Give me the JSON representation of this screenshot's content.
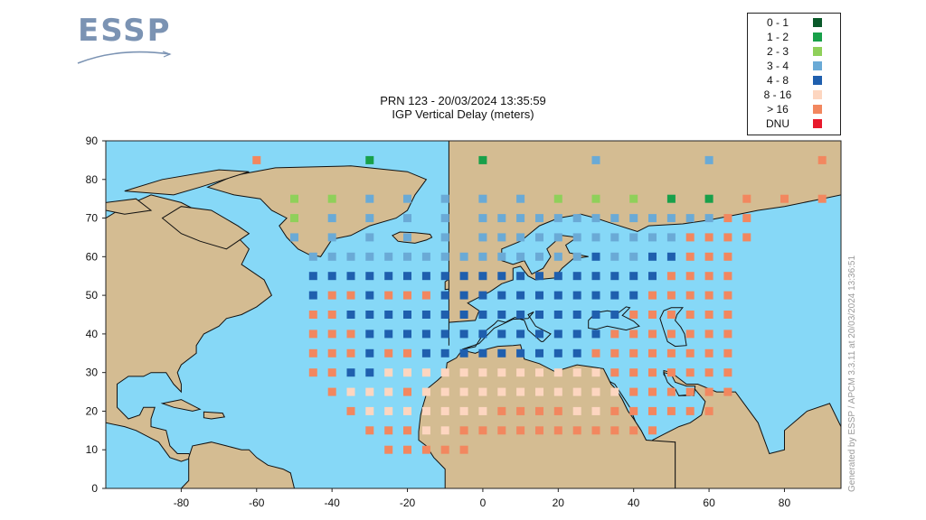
{
  "logo": {
    "text": "ESSP"
  },
  "chart_data": {
    "type": "heatmap",
    "title": "PRN 123 - 20/03/2024 13:35:59",
    "subtitle": "IGP Vertical Delay (meters)",
    "xlim": [
      -100,
      95
    ],
    "ylim": [
      0,
      90
    ],
    "x_ticks": [
      -80,
      -60,
      -40,
      -20,
      0,
      20,
      40,
      60,
      80
    ],
    "y_ticks": [
      0,
      10,
      20,
      30,
      40,
      50,
      60,
      70,
      80,
      90
    ],
    "grid_spacing_deg": 5,
    "legend": [
      {
        "label": "0 - 1",
        "color": "#0a5a2a"
      },
      {
        "label": "1 - 2",
        "color": "#18a04a"
      },
      {
        "label": "2 - 3",
        "color": "#8fd05a"
      },
      {
        "label": "3 - 4",
        "color": "#6aaad6"
      },
      {
        "label": "4 - 8",
        "color": "#1f5fae"
      },
      {
        "label": "8 - 16",
        "color": "#fdd6c0"
      },
      {
        "label": "> 16",
        "color": "#f2875f"
      },
      {
        "label": "DNU",
        "color": "#e8192c"
      }
    ],
    "legend_position": "top-right",
    "colors": {
      "ocean": "#86d8f7",
      "land": "#d4bc92",
      "border": "#111111"
    },
    "rows": [
      {
        "lat": 85,
        "points": [
          [
            -60,
            6
          ],
          [
            -30,
            1
          ],
          [
            0,
            1
          ],
          [
            30,
            3
          ],
          [
            60,
            3
          ],
          [
            90,
            6
          ]
        ]
      },
      {
        "lat": 75,
        "points": [
          [
            -50,
            2
          ],
          [
            -40,
            2
          ],
          [
            -30,
            3
          ],
          [
            -20,
            3
          ],
          [
            -10,
            3
          ],
          [
            0,
            3
          ],
          [
            10,
            3
          ],
          [
            20,
            2
          ],
          [
            30,
            2
          ],
          [
            40,
            2
          ],
          [
            50,
            1
          ],
          [
            60,
            1
          ],
          [
            70,
            6
          ],
          [
            80,
            6
          ],
          [
            90,
            6
          ]
        ]
      },
      {
        "lat": 70,
        "points": [
          [
            -50,
            2
          ],
          [
            -40,
            3
          ],
          [
            -30,
            3
          ],
          [
            -20,
            3
          ],
          [
            -10,
            3
          ],
          [
            0,
            3
          ],
          [
            5,
            3
          ],
          [
            10,
            3
          ],
          [
            15,
            3
          ],
          [
            20,
            3
          ],
          [
            25,
            3
          ],
          [
            30,
            3
          ],
          [
            35,
            3
          ],
          [
            40,
            3
          ],
          [
            45,
            3
          ],
          [
            50,
            3
          ],
          [
            55,
            3
          ],
          [
            60,
            3
          ],
          [
            65,
            6
          ],
          [
            70,
            6
          ]
        ]
      },
      {
        "lat": 65,
        "points": [
          [
            -50,
            3
          ],
          [
            -40,
            3
          ],
          [
            -30,
            3
          ],
          [
            -20,
            3
          ],
          [
            -10,
            3
          ],
          [
            0,
            3
          ],
          [
            5,
            3
          ],
          [
            10,
            3
          ],
          [
            15,
            3
          ],
          [
            20,
            3
          ],
          [
            25,
            3
          ],
          [
            30,
            3
          ],
          [
            35,
            3
          ],
          [
            40,
            3
          ],
          [
            45,
            3
          ],
          [
            50,
            3
          ],
          [
            55,
            6
          ],
          [
            60,
            6
          ],
          [
            65,
            6
          ],
          [
            70,
            6
          ]
        ]
      },
      {
        "lat": 60,
        "points": [
          [
            -45,
            3
          ],
          [
            -40,
            3
          ],
          [
            -35,
            3
          ],
          [
            -30,
            3
          ],
          [
            -25,
            3
          ],
          [
            -20,
            3
          ],
          [
            -15,
            3
          ],
          [
            -10,
            3
          ],
          [
            -5,
            3
          ],
          [
            0,
            3
          ],
          [
            5,
            3
          ],
          [
            10,
            3
          ],
          [
            15,
            3
          ],
          [
            20,
            3
          ],
          [
            25,
            3
          ],
          [
            30,
            4
          ],
          [
            35,
            3
          ],
          [
            40,
            3
          ],
          [
            45,
            4
          ],
          [
            50,
            4
          ],
          [
            55,
            6
          ],
          [
            60,
            6
          ],
          [
            65,
            6
          ]
        ]
      },
      {
        "lat": 55,
        "points": [
          [
            -45,
            4
          ],
          [
            -40,
            4
          ],
          [
            -35,
            4
          ],
          [
            -30,
            4
          ],
          [
            -25,
            4
          ],
          [
            -20,
            4
          ],
          [
            -15,
            4
          ],
          [
            -10,
            4
          ],
          [
            -5,
            4
          ],
          [
            0,
            4
          ],
          [
            5,
            4
          ],
          [
            10,
            4
          ],
          [
            15,
            4
          ],
          [
            20,
            4
          ],
          [
            25,
            4
          ],
          [
            30,
            4
          ],
          [
            35,
            4
          ],
          [
            40,
            4
          ],
          [
            45,
            4
          ],
          [
            50,
            6
          ],
          [
            55,
            6
          ],
          [
            60,
            6
          ],
          [
            65,
            6
          ]
        ]
      },
      {
        "lat": 50,
        "points": [
          [
            -45,
            4
          ],
          [
            -40,
            6
          ],
          [
            -35,
            6
          ],
          [
            -30,
            4
          ],
          [
            -25,
            6
          ],
          [
            -20,
            6
          ],
          [
            -15,
            6
          ],
          [
            -10,
            4
          ],
          [
            -5,
            4
          ],
          [
            0,
            4
          ],
          [
            5,
            4
          ],
          [
            10,
            4
          ],
          [
            15,
            4
          ],
          [
            20,
            4
          ],
          [
            25,
            4
          ],
          [
            30,
            4
          ],
          [
            35,
            4
          ],
          [
            40,
            4
          ],
          [
            45,
            6
          ],
          [
            50,
            6
          ],
          [
            55,
            6
          ],
          [
            60,
            6
          ],
          [
            65,
            6
          ]
        ]
      },
      {
        "lat": 45,
        "points": [
          [
            -45,
            6
          ],
          [
            -40,
            6
          ],
          [
            -35,
            4
          ],
          [
            -30,
            4
          ],
          [
            -25,
            4
          ],
          [
            -20,
            4
          ],
          [
            -15,
            4
          ],
          [
            -10,
            4
          ],
          [
            -5,
            4
          ],
          [
            0,
            4
          ],
          [
            5,
            4
          ],
          [
            10,
            4
          ],
          [
            15,
            4
          ],
          [
            20,
            4
          ],
          [
            25,
            4
          ],
          [
            30,
            4
          ],
          [
            35,
            4
          ],
          [
            40,
            6
          ],
          [
            45,
            6
          ],
          [
            50,
            6
          ],
          [
            55,
            6
          ],
          [
            60,
            6
          ],
          [
            65,
            6
          ]
        ]
      },
      {
        "lat": 40,
        "points": [
          [
            -45,
            6
          ],
          [
            -40,
            6
          ],
          [
            -35,
            6
          ],
          [
            -30,
            4
          ],
          [
            -25,
            4
          ],
          [
            -20,
            4
          ],
          [
            -15,
            4
          ],
          [
            -10,
            4
          ],
          [
            -5,
            4
          ],
          [
            0,
            4
          ],
          [
            5,
            4
          ],
          [
            10,
            4
          ],
          [
            15,
            4
          ],
          [
            20,
            4
          ],
          [
            25,
            4
          ],
          [
            30,
            4
          ],
          [
            35,
            6
          ],
          [
            40,
            6
          ],
          [
            45,
            6
          ],
          [
            50,
            6
          ],
          [
            55,
            6
          ],
          [
            60,
            6
          ],
          [
            65,
            6
          ]
        ]
      },
      {
        "lat": 35,
        "points": [
          [
            -45,
            6
          ],
          [
            -40,
            6
          ],
          [
            -35,
            6
          ],
          [
            -30,
            4
          ],
          [
            -25,
            6
          ],
          [
            -20,
            6
          ],
          [
            -15,
            4
          ],
          [
            -10,
            4
          ],
          [
            -5,
            4
          ],
          [
            0,
            4
          ],
          [
            5,
            4
          ],
          [
            10,
            4
          ],
          [
            15,
            4
          ],
          [
            20,
            4
          ],
          [
            25,
            4
          ],
          [
            30,
            6
          ],
          [
            35,
            6
          ],
          [
            40,
            6
          ],
          [
            45,
            6
          ],
          [
            50,
            6
          ],
          [
            55,
            6
          ],
          [
            60,
            6
          ],
          [
            65,
            6
          ]
        ]
      },
      {
        "lat": 30,
        "points": [
          [
            -45,
            6
          ],
          [
            -40,
            6
          ],
          [
            -35,
            4
          ],
          [
            -30,
            4
          ],
          [
            -25,
            5
          ],
          [
            -20,
            5
          ],
          [
            -15,
            5
          ],
          [
            -10,
            5
          ],
          [
            -5,
            5
          ],
          [
            0,
            5
          ],
          [
            5,
            5
          ],
          [
            10,
            5
          ],
          [
            15,
            5
          ],
          [
            20,
            5
          ],
          [
            25,
            5
          ],
          [
            30,
            5
          ],
          [
            35,
            6
          ],
          [
            40,
            6
          ],
          [
            45,
            6
          ],
          [
            50,
            6
          ],
          [
            55,
            6
          ],
          [
            60,
            6
          ],
          [
            65,
            6
          ]
        ]
      },
      {
        "lat": 25,
        "points": [
          [
            -40,
            6
          ],
          [
            -35,
            5
          ],
          [
            -30,
            5
          ],
          [
            -25,
            5
          ],
          [
            -20,
            6
          ],
          [
            -15,
            5
          ],
          [
            -10,
            5
          ],
          [
            -5,
            5
          ],
          [
            0,
            5
          ],
          [
            5,
            5
          ],
          [
            10,
            5
          ],
          [
            15,
            5
          ],
          [
            20,
            5
          ],
          [
            25,
            5
          ],
          [
            30,
            5
          ],
          [
            35,
            5
          ],
          [
            40,
            6
          ],
          [
            45,
            6
          ],
          [
            50,
            6
          ],
          [
            55,
            6
          ],
          [
            60,
            6
          ],
          [
            65,
            6
          ]
        ]
      },
      {
        "lat": 20,
        "points": [
          [
            -35,
            6
          ],
          [
            -30,
            5
          ],
          [
            -25,
            5
          ],
          [
            -20,
            5
          ],
          [
            -15,
            5
          ],
          [
            -10,
            5
          ],
          [
            -5,
            5
          ],
          [
            0,
            5
          ],
          [
            5,
            6
          ],
          [
            10,
            6
          ],
          [
            15,
            6
          ],
          [
            20,
            6
          ],
          [
            25,
            5
          ],
          [
            30,
            5
          ],
          [
            35,
            6
          ],
          [
            40,
            6
          ],
          [
            45,
            6
          ],
          [
            50,
            6
          ],
          [
            55,
            6
          ],
          [
            60,
            6
          ]
        ]
      },
      {
        "lat": 15,
        "points": [
          [
            -30,
            6
          ],
          [
            -25,
            6
          ],
          [
            -20,
            6
          ],
          [
            -15,
            5
          ],
          [
            -10,
            5
          ],
          [
            -5,
            6
          ],
          [
            0,
            6
          ],
          [
            5,
            6
          ],
          [
            10,
            6
          ],
          [
            15,
            6
          ],
          [
            20,
            6
          ],
          [
            25,
            6
          ],
          [
            30,
            6
          ],
          [
            35,
            6
          ],
          [
            40,
            6
          ],
          [
            45,
            6
          ]
        ]
      },
      {
        "lat": 10,
        "points": [
          [
            -25,
            6
          ],
          [
            -20,
            6
          ],
          [
            -15,
            6
          ],
          [
            -10,
            6
          ],
          [
            -5,
            6
          ]
        ]
      }
    ]
  },
  "credit": "Generated by ESSP / APCM 3.3.11 at 20/03/2024 13:36:51"
}
